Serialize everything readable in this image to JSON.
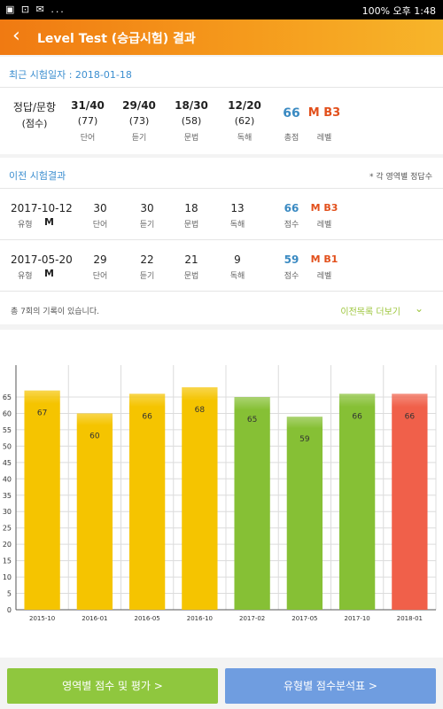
{
  "statusbar": {
    "left": "▣ ⊡ ✉ ...",
    "right": "100% 오후 1:48"
  },
  "header": {
    "title": "Level Test (승급시험) 결과"
  },
  "recent": {
    "title": "최근 시험일자 : 2018-01-18",
    "row_label": "정답/문항",
    "row_sublabel": "(점수)",
    "cols": [
      {
        "fraction": "31/40",
        "score": "(77)",
        "label": "단어"
      },
      {
        "fraction": "29/40",
        "score": "(73)",
        "label": "듣기"
      },
      {
        "fraction": "18/30",
        "score": "(58)",
        "label": "문법"
      },
      {
        "fraction": "12/20",
        "score": "(62)",
        "label": "독해"
      }
    ],
    "total": "66",
    "total_label": "총점",
    "level": "M B3",
    "level_label": "레벨"
  },
  "previous": {
    "title": "이전 시험결과",
    "note": "* 각 영역별 정답수",
    "type_label": "유형",
    "rows": [
      {
        "date": "2017-10-12",
        "type": "M",
        "vals": [
          "30",
          "30",
          "18",
          "13"
        ],
        "score": "66",
        "level": "M B3"
      },
      {
        "date": "2017-05-20",
        "type": "M",
        "vals": [
          "29",
          "22",
          "21",
          "9"
        ],
        "score": "59",
        "level": "M B1"
      }
    ],
    "col_labels": [
      "단어",
      "듣기",
      "문법",
      "독해"
    ],
    "score_label": "점수",
    "level_label": "레벨",
    "total_records": "총 7회의 기록이 있습니다.",
    "more": "이전목록 더보기"
  },
  "chart_data": {
    "type": "bar",
    "categories": [
      "2015-10",
      "2016-01",
      "2016-05",
      "2016-10",
      "2017-02",
      "2017-05",
      "2017-10",
      "2018-01"
    ],
    "values": [
      67,
      60,
      66,
      68,
      65,
      59,
      66,
      66
    ],
    "colors": [
      "#f5c400",
      "#f5c400",
      "#f5c400",
      "#f5c400",
      "#86c035",
      "#86c035",
      "#86c035",
      "#f0604a"
    ],
    "ylim": [
      0,
      65
    ],
    "yticks": [
      0,
      5,
      10,
      15,
      20,
      25,
      30,
      35,
      40,
      45,
      50,
      55,
      60,
      65
    ],
    "grid": true,
    "title": "",
    "xlabel": "",
    "ylabel": ""
  },
  "buttons": {
    "area": "영역별 점수 및 평가 >",
    "type": "유형별 점수분석표 >"
  }
}
